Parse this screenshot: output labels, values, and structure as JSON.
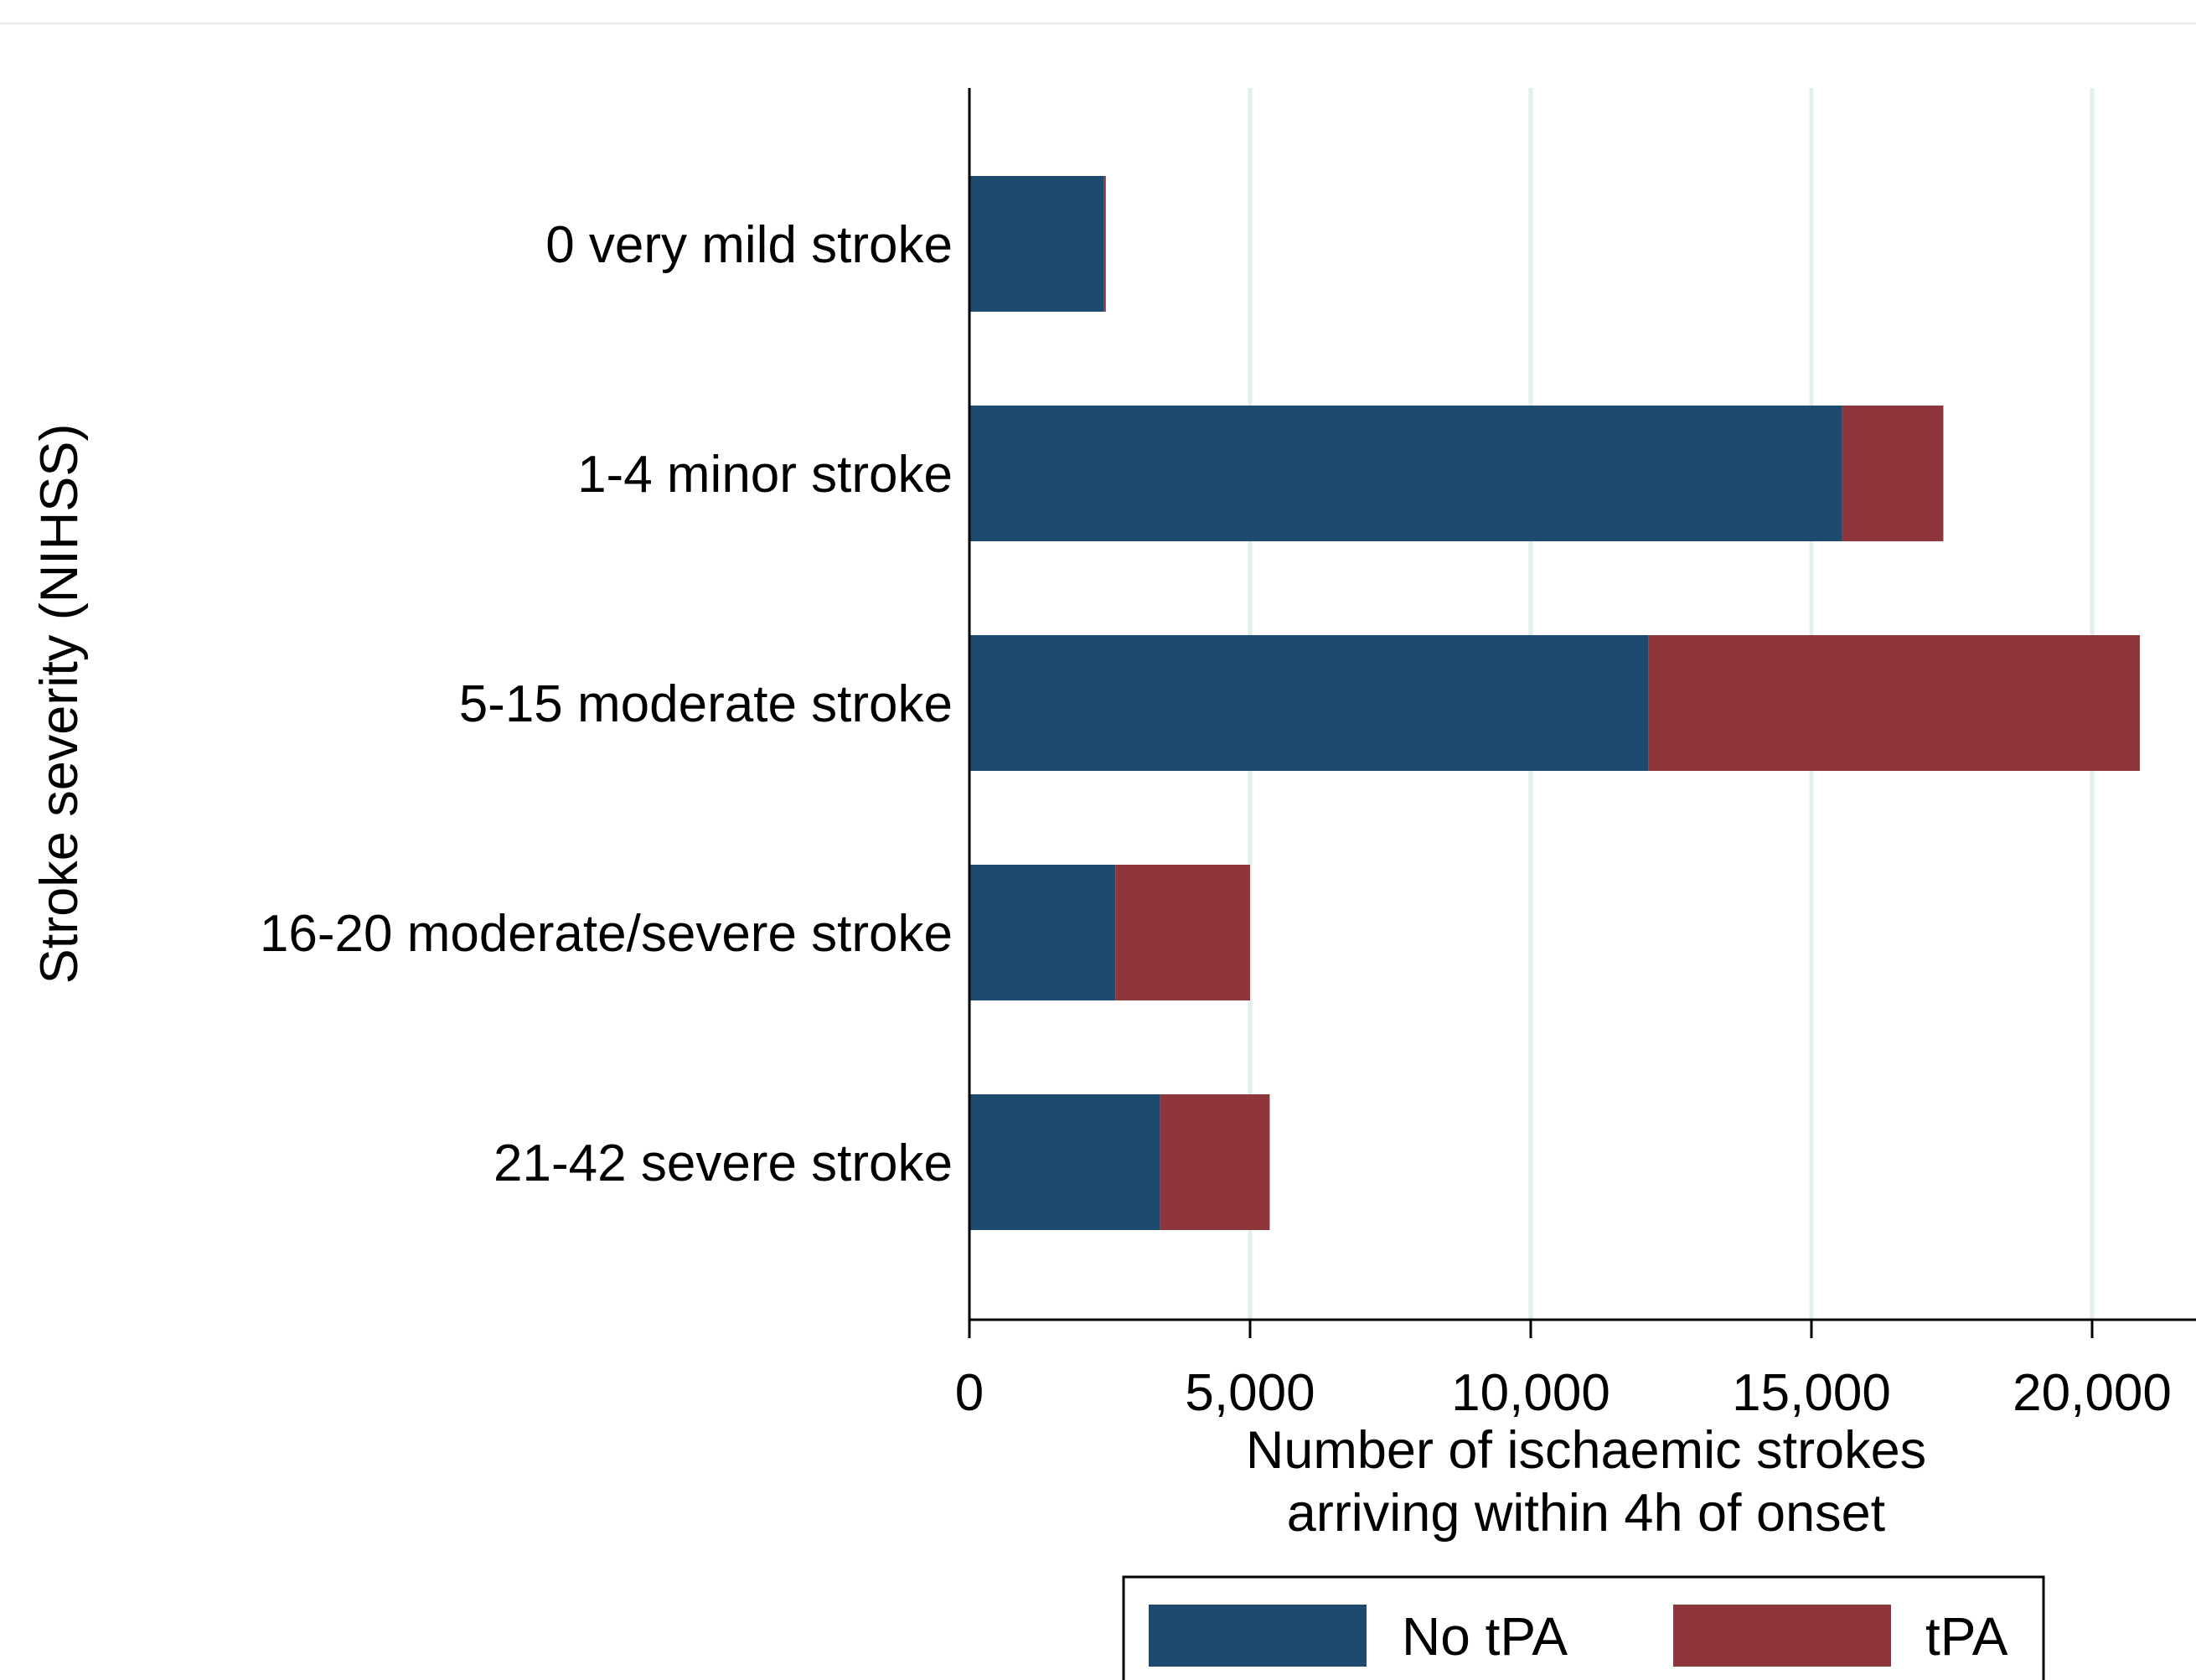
{
  "chart_data": {
    "type": "bar",
    "orientation": "horizontal",
    "stacked": true,
    "categories": [
      "0 very mild stroke",
      "1-4 minor stroke",
      "5-15 moderate stroke",
      "16-20 moderate/severe stroke",
      "21-42 severe stroke"
    ],
    "series": [
      {
        "name": "No tPA",
        "color": "#1e4a70",
        "values": [
          2400,
          15550,
          12100,
          2600,
          3400
        ]
      },
      {
        "name": "tPA",
        "color": "#8f363c",
        "values": [
          30,
          1800,
          8750,
          2400,
          1950
        ]
      }
    ],
    "xlabel": [
      "Number of ischaemic strokes",
      "arriving within 4h of onset"
    ],
    "ylabel": "Stroke severity (NIHSS)",
    "xlim": [
      0,
      21700
    ],
    "xticks": [
      0,
      5000,
      10000,
      15000,
      20000
    ],
    "xtick_labels": [
      "0",
      "5,000",
      "10,000",
      "15,000",
      "20,000"
    ],
    "grid": "vertical",
    "grid_color": "#e3eeee",
    "legend_position": "bottom",
    "legend": [
      "No tPA",
      "tPA"
    ]
  }
}
